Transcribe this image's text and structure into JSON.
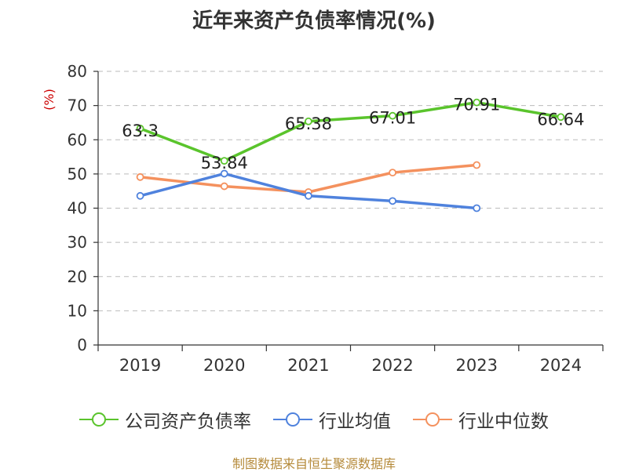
{
  "chart_data": {
    "type": "line",
    "title": "近年来资产负债率情况(%)",
    "ylabel": "(%)",
    "ylim": [
      0,
      80
    ],
    "yticks": [
      0,
      10,
      20,
      30,
      40,
      50,
      60,
      70,
      80
    ],
    "categories": [
      "2019",
      "2020",
      "2021",
      "2022",
      "2023",
      "2024"
    ],
    "grid": "horizontal-dashed",
    "legend_position": "bottom",
    "series": [
      {
        "name": "公司资产负债率",
        "color": "#5ac42c",
        "values": [
          63.3,
          53.84,
          65.38,
          67.01,
          70.91,
          66.64
        ],
        "labels": [
          "63.3",
          "53.84",
          "65.38",
          "67.01",
          "70.91",
          "66.64"
        ]
      },
      {
        "name": "行业均值",
        "color": "#4f82dd",
        "values": [
          43.6,
          50.1,
          43.6,
          42.1,
          40.0,
          null
        ]
      },
      {
        "name": "行业中位数",
        "color": "#f4915e",
        "values": [
          49.1,
          46.4,
          44.7,
          50.4,
          52.6,
          null
        ]
      }
    ]
  },
  "source_text": "制图数据来自恒生聚源数据库"
}
